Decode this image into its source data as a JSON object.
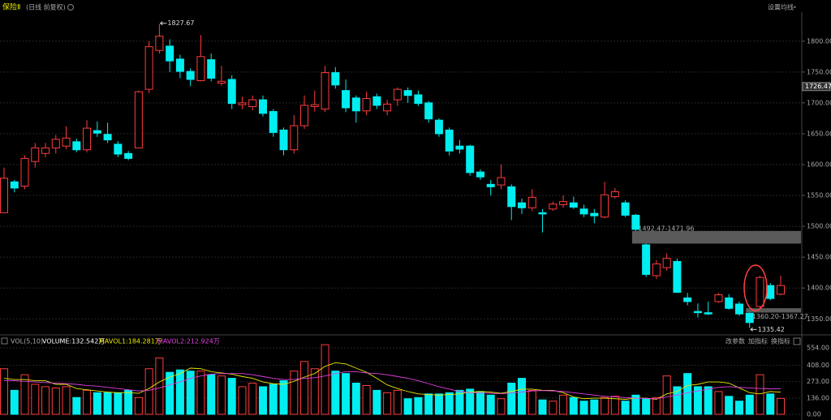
{
  "header": {
    "title": "保险Ⅱ",
    "subtitle": "(日线 前复权)",
    "menu": "设置均线"
  },
  "chart_data": [
    {
      "type": "candlestick",
      "open": [
        1522,
        1572,
        1565,
        1605,
        1618,
        1627,
        1630,
        1637,
        1624,
        1655,
        1649,
        1633,
        1618,
        1627,
        1722,
        1785,
        1792,
        1771,
        1751,
        1736,
        1770,
        1732,
        1738,
        1697,
        1694,
        1705,
        1686,
        1656,
        1624,
        1663,
        1694,
        1690,
        1749,
        1720,
        1708,
        1687,
        1710,
        1687,
        1705,
        1720,
        1713,
        1700,
        1672,
        1656,
        1630,
        1630,
        1588,
        1568,
        1567,
        1564,
        1538,
        1530,
        1522,
        1528,
        1535,
        1538,
        1528,
        1521,
        1515,
        1548,
        1538,
        1518,
        1470,
        1420,
        1433,
        1443,
        1384,
        1362,
        1360,
        1378,
        1384,
        1374,
        1359,
        1370,
        1404,
        1390
      ],
      "high": [
        1595,
        1575,
        1615,
        1635,
        1635,
        1648,
        1662,
        1642,
        1672,
        1670,
        1668,
        1638,
        1622,
        1720,
        1800,
        1827.67,
        1803,
        1778,
        1756,
        1810,
        1780,
        1760,
        1745,
        1710,
        1712,
        1712,
        1690,
        1660,
        1680,
        1712,
        1720,
        1760,
        1758,
        1738,
        1712,
        1718,
        1715,
        1705,
        1725,
        1725,
        1720,
        1703,
        1675,
        1660,
        1640,
        1632,
        1592,
        1575,
        1600,
        1568,
        1545,
        1560,
        1528,
        1540,
        1550,
        1548,
        1535,
        1528,
        1572,
        1562,
        1542,
        1520,
        1471.96,
        1445,
        1456,
        1448,
        1392,
        1375,
        1378,
        1392,
        1390,
        1378,
        1360.2,
        1420,
        1408,
        1420
      ],
      "low": [
        1522,
        1555,
        1560,
        1595,
        1612,
        1618,
        1625,
        1620,
        1620,
        1645,
        1635,
        1612,
        1607,
        1627,
        1716,
        1780,
        1750,
        1740,
        1727,
        1735,
        1735,
        1728,
        1690,
        1690,
        1688,
        1678,
        1645,
        1615,
        1618,
        1658,
        1686,
        1685,
        1723,
        1685,
        1668,
        1680,
        1690,
        1680,
        1695,
        1700,
        1695,
        1668,
        1645,
        1615,
        1618,
        1582,
        1575,
        1550,
        1560,
        1510,
        1520,
        1525,
        1490,
        1525,
        1530,
        1528,
        1515,
        1505,
        1513,
        1545,
        1515,
        1492.47,
        1418,
        1415,
        1428,
        1392,
        1372,
        1352,
        1356,
        1376,
        1365,
        1355,
        1335.42,
        1367.27,
        1380,
        1388
      ],
      "close": [
        1578,
        1562,
        1610,
        1627,
        1627,
        1641,
        1643,
        1624,
        1659,
        1651,
        1640,
        1617,
        1610,
        1718,
        1791,
        1808,
        1768,
        1751,
        1738,
        1775,
        1740,
        1735,
        1699,
        1700,
        1705,
        1683,
        1652,
        1624,
        1663,
        1696,
        1697,
        1749,
        1729,
        1692,
        1687,
        1707,
        1696,
        1698,
        1722,
        1712,
        1699,
        1674,
        1650,
        1622,
        1625,
        1587,
        1580,
        1564,
        1579,
        1532,
        1530,
        1547,
        1520,
        1536,
        1540,
        1531,
        1520,
        1517,
        1551,
        1556,
        1518,
        1495,
        1422,
        1439,
        1448,
        1393,
        1378,
        1360,
        1358,
        1389,
        1367,
        1358,
        1344,
        1417,
        1383,
        1404
      ],
      "up_color": "#ff3c3c",
      "down_color": "#00eef0",
      "ylim": [
        1328,
        1847
      ],
      "yticks": [
        {
          "value": 1350,
          "label": "1350.00"
        },
        {
          "value": 1400,
          "label": "1400.00"
        },
        {
          "value": 1450,
          "label": "1450.00"
        },
        {
          "value": 1500,
          "label": "1500.00"
        },
        {
          "value": 1550,
          "label": "1550.00"
        },
        {
          "value": 1600,
          "label": "1600.00"
        },
        {
          "value": 1650,
          "label": "1650.00"
        },
        {
          "value": 1700,
          "label": "1700.00"
        },
        {
          "value": 1750,
          "label": "1750.00"
        },
        {
          "value": 1800,
          "label": "1800.00"
        }
      ],
      "grid": true,
      "marker": 1726.47,
      "gaps": [
        {
          "range": [
            1471.96,
            1492.47
          ],
          "label": "1492.47-1471.96"
        },
        {
          "range": [
            1360.2,
            1367.27
          ],
          "label": "1360.20-1367.27"
        }
      ]
    },
    {
      "type": "volume",
      "title": "VOL(5,10)",
      "volume_label": "VOLUME:132.542万",
      "volume_color": "#ffffff",
      "values": [
        380,
        200,
        330,
        250,
        230,
        220,
        230,
        140,
        200,
        180,
        180,
        180,
        200,
        140,
        380,
        470,
        350,
        370,
        360,
        360,
        330,
        320,
        300,
        230,
        260,
        230,
        250,
        280,
        360,
        440,
        380,
        580,
        360,
        340,
        260,
        240,
        200,
        180,
        200,
        130,
        140,
        170,
        170,
        180,
        200,
        210,
        190,
        160,
        130,
        260,
        300,
        200,
        120,
        110,
        160,
        140,
        110,
        120,
        140,
        150,
        110,
        160,
        130,
        140,
        320,
        230,
        340,
        230,
        230,
        190,
        150,
        110,
        160,
        330,
        170,
        132.542
      ],
      "series": [
        {
          "name": "MAVOL1:184.281万",
          "color": "#e8e800",
          "values": [
            300,
            290,
            290,
            280,
            280,
            250,
            250,
            215,
            205,
            195,
            185,
            180,
            180,
            175,
            215,
            270,
            310,
            340,
            385,
            380,
            355,
            345,
            335,
            315,
            300,
            270,
            255,
            250,
            275,
            310,
            340,
            400,
            430,
            420,
            385,
            350,
            300,
            245,
            215,
            190,
            170,
            165,
            160,
            165,
            170,
            185,
            190,
            185,
            175,
            190,
            210,
            210,
            200,
            200,
            180,
            145,
            130,
            135,
            135,
            130,
            125,
            135,
            135,
            125,
            170,
            190,
            240,
            250,
            270,
            270,
            260,
            220,
            180,
            170,
            190,
            184.281
          ]
        },
        {
          "name": "MAVOL2:212.924万",
          "color": "#e040e0",
          "values": [
            280,
            280,
            275,
            270,
            265,
            260,
            255,
            250,
            240,
            235,
            225,
            215,
            205,
            195,
            200,
            220,
            245,
            270,
            300,
            320,
            335,
            340,
            340,
            340,
            330,
            315,
            300,
            290,
            290,
            300,
            305,
            320,
            340,
            355,
            355,
            345,
            340,
            330,
            315,
            300,
            280,
            255,
            230,
            210,
            190,
            180,
            178,
            175,
            172,
            178,
            185,
            195,
            198,
            195,
            190,
            180,
            170,
            160,
            150,
            145,
            140,
            135,
            132,
            130,
            145,
            160,
            180,
            195,
            210,
            225,
            230,
            225,
            220,
            215,
            212,
            212.924
          ]
        }
      ],
      "ylim": [
        0,
        581
      ],
      "yticks": [
        {
          "value": 0,
          "label": "0.00"
        },
        {
          "value": 136,
          "label": "136.00"
        },
        {
          "value": 273,
          "label": "273.00"
        },
        {
          "value": 408,
          "label": "408.00"
        },
        {
          "value": 554,
          "label": "554.00"
        }
      ]
    }
  ],
  "toolbar": [
    "改参数",
    "加指标",
    "换指标"
  ]
}
